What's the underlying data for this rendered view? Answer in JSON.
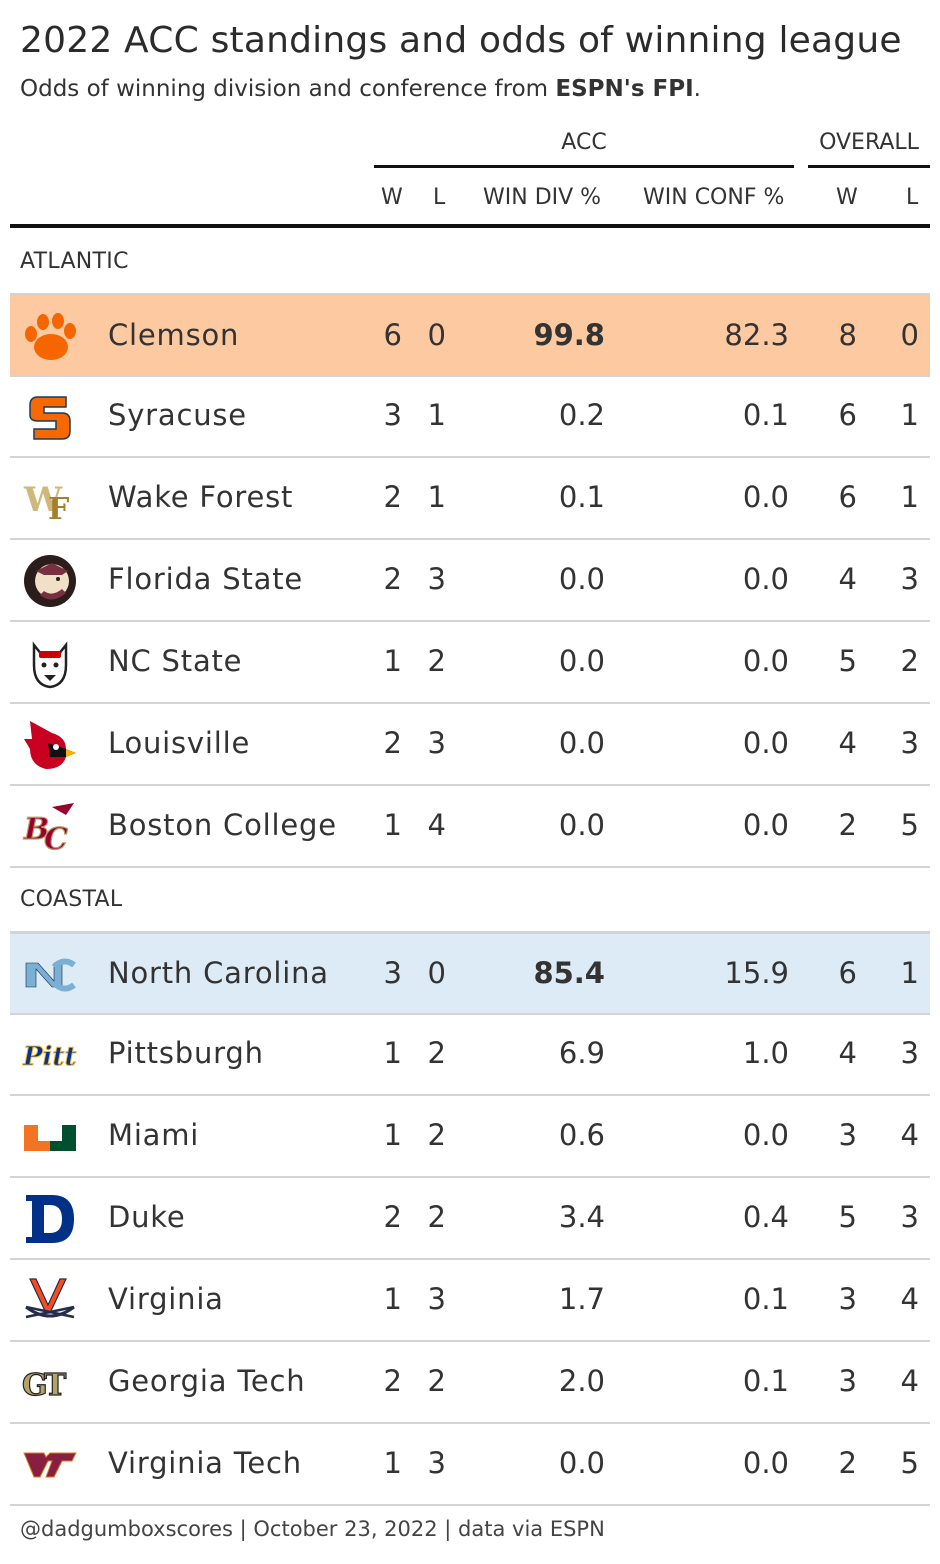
{
  "title": "2022 ACC standings and odds of winning league",
  "subtitle_prefix": "Odds of winning division and conference from ",
  "subtitle_bold": "ESPN's FPI",
  "subtitle_suffix": ".",
  "spanners": {
    "acc": "ACC",
    "overall": "OVERALL"
  },
  "columns": {
    "w": "W",
    "l": "L",
    "win_div": "WIN DIV %",
    "win_conf": "WIN CONF %",
    "ow": "W",
    "ol": "L"
  },
  "groups": [
    {
      "name": "ATLANTIC",
      "teams": [
        {
          "team": "Clemson",
          "logo": "clemson-paw-logo",
          "w": "6",
          "l": "0",
          "win_div": "99.8",
          "win_conf": "82.3",
          "ow": "8",
          "ol": "0"
        },
        {
          "team": "Syracuse",
          "logo": "syracuse-s-logo",
          "w": "3",
          "l": "1",
          "win_div": "0.2",
          "win_conf": "0.1",
          "ow": "6",
          "ol": "1"
        },
        {
          "team": "Wake Forest",
          "logo": "wake-forest-wf-logo",
          "w": "2",
          "l": "1",
          "win_div": "0.1",
          "win_conf": "0.0",
          "ow": "6",
          "ol": "1"
        },
        {
          "team": "Florida State",
          "logo": "florida-state-seminole-logo",
          "w": "2",
          "l": "3",
          "win_div": "0.0",
          "win_conf": "0.0",
          "ow": "4",
          "ol": "3"
        },
        {
          "team": "NC State",
          "logo": "nc-state-wolf-logo",
          "w": "1",
          "l": "2",
          "win_div": "0.0",
          "win_conf": "0.0",
          "ow": "5",
          "ol": "2"
        },
        {
          "team": "Louisville",
          "logo": "louisville-cardinal-logo",
          "w": "2",
          "l": "3",
          "win_div": "0.0",
          "win_conf": "0.0",
          "ow": "4",
          "ol": "3"
        },
        {
          "team": "Boston College",
          "logo": "boston-college-eagle-logo",
          "w": "1",
          "l": "4",
          "win_div": "0.0",
          "win_conf": "0.0",
          "ow": "2",
          "ol": "5"
        }
      ]
    },
    {
      "name": "COASTAL",
      "teams": [
        {
          "team": "North Carolina",
          "logo": "north-carolina-nc-logo",
          "w": "3",
          "l": "0",
          "win_div": "85.4",
          "win_conf": "15.9",
          "ow": "6",
          "ol": "1"
        },
        {
          "team": "Pittsburgh",
          "logo": "pitt-script-logo",
          "w": "1",
          "l": "2",
          "win_div": "6.9",
          "win_conf": "1.0",
          "ow": "4",
          "ol": "3"
        },
        {
          "team": "Miami",
          "logo": "miami-u-logo",
          "w": "1",
          "l": "2",
          "win_div": "0.6",
          "win_conf": "0.0",
          "ow": "3",
          "ol": "4"
        },
        {
          "team": "Duke",
          "logo": "duke-d-logo",
          "w": "2",
          "l": "2",
          "win_div": "3.4",
          "win_conf": "0.4",
          "ow": "5",
          "ol": "3"
        },
        {
          "team": "Virginia",
          "logo": "virginia-sabres-logo",
          "w": "1",
          "l": "3",
          "win_div": "1.7",
          "win_conf": "0.1",
          "ow": "3",
          "ol": "4"
        },
        {
          "team": "Georgia Tech",
          "logo": "georgia-tech-gt-logo",
          "w": "2",
          "l": "2",
          "win_div": "2.0",
          "win_conf": "0.1",
          "ow": "3",
          "ol": "4"
        },
        {
          "team": "Virginia Tech",
          "logo": "virginia-tech-vt-logo",
          "w": "1",
          "l": "3",
          "win_div": "0.0",
          "win_conf": "0.0",
          "ow": "2",
          "ol": "5"
        }
      ]
    }
  ],
  "highlight_colors": {
    "atlantic_leader": "#fdc9a1",
    "coastal_leader": "#ddebf6"
  },
  "footer": "@dadgumboxscores | October 23, 2022 | data via ESPN"
}
